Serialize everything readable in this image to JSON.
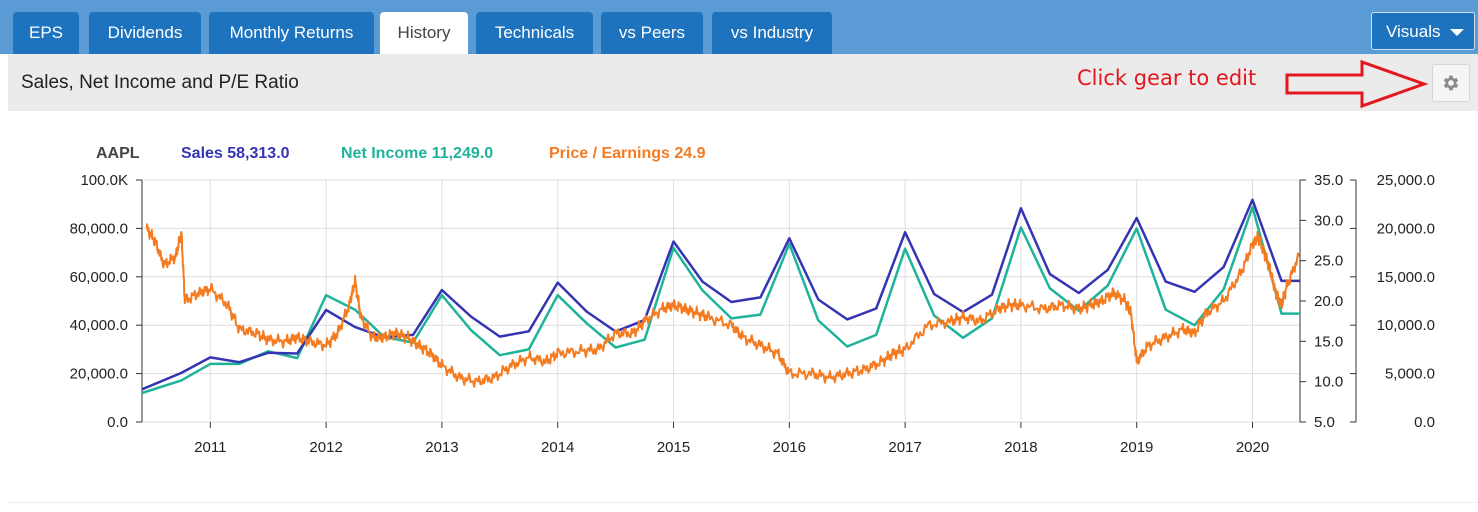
{
  "tabs": [
    {
      "label": "EPS",
      "active": false
    },
    {
      "label": "Dividends",
      "active": false
    },
    {
      "label": "Monthly Returns",
      "active": false
    },
    {
      "label": "History",
      "active": true
    },
    {
      "label": "Technicals",
      "active": false
    },
    {
      "label": "vs Peers",
      "active": false
    },
    {
      "label": "vs Industry",
      "active": false
    }
  ],
  "visuals_label": "Visuals",
  "header": {
    "title": "Sales, Net Income and P/E Ratio",
    "hint": "Click gear to edit"
  },
  "icons": {
    "gear": "gear-icon",
    "dropdown": "chevron-down-icon",
    "arrow": "right-arrow-icon"
  },
  "colors": {
    "tab_bar": "#5b9bd5",
    "tab": "#1e73be",
    "sales": "#3535b4",
    "net_income": "#1fb39a",
    "pe": "#f47b20",
    "hint": "#e4161e"
  },
  "chart_data": {
    "type": "line",
    "legend": {
      "ticker": "AAPL",
      "items": [
        {
          "label": "Sales 58,313.0",
          "color": "#3535b4"
        },
        {
          "label": "Net Income 11,249.0",
          "color": "#1fb39a"
        },
        {
          "label": "Price / Earnings 24.9",
          "color": "#f47b20"
        }
      ]
    },
    "x_ticks": [
      "2011",
      "2012",
      "2013",
      "2014",
      "2015",
      "2016",
      "2017",
      "2018",
      "2019",
      "2020"
    ],
    "xlim": [
      2010.41,
      2020.41
    ],
    "axes": {
      "left": {
        "ticks": [
          "0.0",
          "20,000.0",
          "40,000.0",
          "60,000.0",
          "80,000.0",
          "100.0K"
        ],
        "ylim": [
          0,
          100000
        ]
      },
      "pe": {
        "ticks": [
          "5.0",
          "10.0",
          "15.0",
          "20.0",
          "25.0",
          "30.0",
          "35.0"
        ],
        "ylim": [
          5,
          35
        ]
      },
      "right": {
        "ticks": [
          "0.0",
          "5,000.0",
          "10,000.0",
          "15,000.0",
          "20,000.0",
          "25,000.0"
        ],
        "ylim": [
          0,
          25000
        ]
      }
    },
    "grid": true,
    "series": [
      {
        "name": "Sales",
        "axis": "left",
        "x": [
          2010.41,
          2010.75,
          2011.0,
          2011.25,
          2011.5,
          2011.75,
          2012.0,
          2012.25,
          2012.5,
          2012.75,
          2013.0,
          2013.25,
          2013.5,
          2013.75,
          2014.0,
          2014.25,
          2014.5,
          2014.75,
          2015.0,
          2015.25,
          2015.5,
          2015.75,
          2016.0,
          2016.25,
          2016.5,
          2016.75,
          2017.0,
          2017.25,
          2017.5,
          2017.75,
          2018.0,
          2018.25,
          2018.5,
          2018.75,
          2019.0,
          2019.25,
          2019.5,
          2019.75,
          2020.0,
          2020.25,
          2020.41
        ],
        "values": [
          13500,
          20300,
          26700,
          24700,
          28600,
          28300,
          46300,
          39200,
          35000,
          36000,
          54500,
          43600,
          35300,
          37500,
          57600,
          45600,
          37400,
          42100,
          74600,
          58000,
          49600,
          51500,
          75900,
          50600,
          42400,
          46900,
          78400,
          52900,
          45400,
          52600,
          88300,
          61100,
          53300,
          62900,
          84300,
          58000,
          53800,
          64000,
          91800,
          58300,
          58300
        ]
      },
      {
        "name": "Net Income",
        "axis": "right",
        "x": [
          2010.41,
          2010.75,
          2011.0,
          2011.25,
          2011.5,
          2011.75,
          2012.0,
          2012.25,
          2012.5,
          2012.75,
          2013.0,
          2013.25,
          2013.5,
          2013.75,
          2014.0,
          2014.25,
          2014.5,
          2014.75,
          2015.0,
          2015.25,
          2015.5,
          2015.75,
          2016.0,
          2016.25,
          2016.5,
          2016.75,
          2017.0,
          2017.25,
          2017.5,
          2017.75,
          2018.0,
          2018.25,
          2018.5,
          2018.75,
          2019.0,
          2019.25,
          2019.5,
          2019.75,
          2020.0,
          2020.25,
          2020.41
        ],
        "values": [
          3000,
          4300,
          6000,
          6000,
          7300,
          6600,
          13100,
          11600,
          8800,
          8200,
          13100,
          9500,
          6900,
          7500,
          13100,
          10200,
          7700,
          8500,
          18000,
          13600,
          10700,
          11100,
          18400,
          10500,
          7800,
          9000,
          17900,
          11000,
          8700,
          10700,
          20100,
          13800,
          11500,
          14100,
          20000,
          11600,
          10000,
          13700,
          22200,
          11200,
          11200
        ]
      },
      {
        "name": "Price / Earnings",
        "axis": "pe",
        "x": [
          2010.45,
          2010.52,
          2010.6,
          2010.7,
          2010.75,
          2010.78,
          2010.9,
          2011.0,
          2011.15,
          2011.25,
          2011.4,
          2011.5,
          2011.65,
          2011.75,
          2011.85,
          2012.0,
          2012.1,
          2012.2,
          2012.25,
          2012.3,
          2012.4,
          2012.5,
          2012.6,
          2012.7,
          2012.8,
          2012.9,
          2013.0,
          2013.15,
          2013.3,
          2013.45,
          2013.6,
          2013.75,
          2013.9,
          2014.0,
          2014.2,
          2014.35,
          2014.5,
          2014.65,
          2014.75,
          2014.9,
          2015.0,
          2015.1,
          2015.2,
          2015.3,
          2015.5,
          2015.6,
          2015.75,
          2015.9,
          2016.0,
          2016.2,
          2016.35,
          2016.5,
          2016.65,
          2016.8,
          2016.9,
          2017.0,
          2017.2,
          2017.4,
          2017.5,
          2017.65,
          2017.8,
          2017.9,
          2018.0,
          2018.2,
          2018.35,
          2018.5,
          2018.6,
          2018.7,
          2018.8,
          2018.9,
          2018.95,
          2019.0,
          2019.1,
          2019.25,
          2019.4,
          2019.5,
          2019.6,
          2019.75,
          2019.9,
          2020.0,
          2020.05,
          2020.1,
          2020.15,
          2020.2,
          2020.25,
          2020.3,
          2020.4
        ],
        "values": [
          29,
          27.5,
          24.5,
          25.5,
          28.5,
          20,
          21,
          21.5,
          19.5,
          16.5,
          16,
          15.2,
          15,
          15.5,
          15,
          14.5,
          16,
          19.5,
          22.5,
          18,
          15.5,
          15.5,
          16,
          15.5,
          14.5,
          13.5,
          12,
          10.5,
          10,
          10.5,
          12,
          13,
          12.5,
          13.5,
          13.8,
          14,
          16,
          16,
          17.5,
          19,
          19.5,
          19,
          18.5,
          18,
          17,
          15.5,
          14.5,
          13.5,
          11,
          11,
          10.5,
          11,
          11.5,
          12.5,
          13.5,
          14,
          17,
          17.5,
          18,
          17.5,
          19,
          19.5,
          19.5,
          19,
          19.5,
          19,
          19.5,
          20,
          21,
          20,
          18.5,
          12.5,
          14.5,
          15.5,
          16.5,
          16,
          18.5,
          20,
          23.5,
          27,
          28,
          26,
          24,
          21,
          19.5,
          22,
          25.5
        ]
      }
    ]
  }
}
